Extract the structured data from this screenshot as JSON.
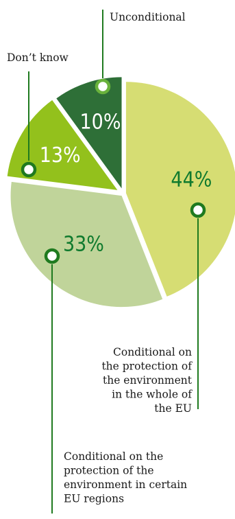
{
  "chart_data": {
    "type": "pie",
    "slices": [
      {
        "label": "Conditional on the protection of the environment in the whole of the EU",
        "value": 44,
        "display": "44%",
        "color": "#d6dd73",
        "text_color": "#0f7a2e"
      },
      {
        "label": "Conditional on the protection of the environment in certain EU regions",
        "value": 33,
        "display": "33%",
        "color": "#c0d49a",
        "text_color": "#0f7a2e"
      },
      {
        "label": "Don’t know",
        "value": 13,
        "display": "13%",
        "color": "#93c11c",
        "text_color": "#ffffff"
      },
      {
        "label": "Unconditional",
        "value": 10,
        "display": "10%",
        "color": "#2e6f37",
        "text_color": "#ffffff"
      }
    ],
    "callouts": {
      "unconditional": "Unconditional",
      "dont_know": "Don’t know",
      "whole_eu": [
        "Conditional on",
        "the protection of",
        "the environment",
        "in the whole of",
        "the EU"
      ],
      "certain_regions": [
        "Conditional on the",
        "protection of the",
        "environment in certain",
        "EU regions"
      ]
    },
    "leader_color": "#1f7a1f"
  }
}
